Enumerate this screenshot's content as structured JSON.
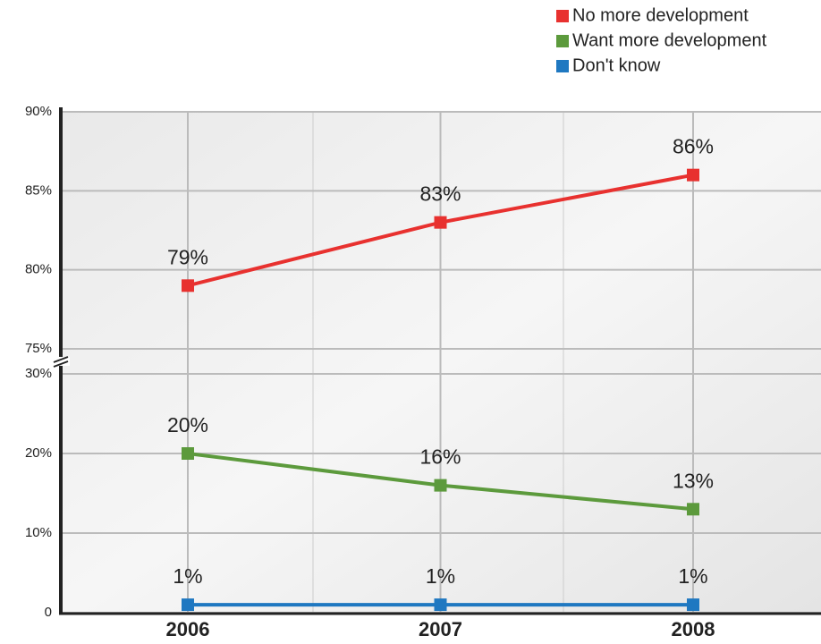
{
  "chart_data": [
    {
      "type": "line",
      "ylim": [
        75,
        90
      ],
      "yticks": [
        {
          "value": 75,
          "label": "75%"
        },
        {
          "value": 80,
          "label": "80%"
        },
        {
          "value": 85,
          "label": "85%"
        },
        {
          "value": 90,
          "label": "90%"
        }
      ],
      "grid": true,
      "series": [
        {
          "name": "No more development",
          "color": "#e8312f",
          "values": [
            79,
            83,
            86
          ],
          "value_labels": [
            "79%",
            "83%",
            "86%"
          ]
        }
      ]
    },
    {
      "type": "line",
      "categories": [
        "2006",
        "2007",
        "2008"
      ],
      "ylim": [
        0,
        30
      ],
      "yticks": [
        0,
        {
          "value": 10,
          "label": "10%"
        },
        {
          "value": 20,
          "label": "20%"
        },
        {
          "value": 30,
          "label": "30%"
        }
      ],
      "grid": true,
      "legend": "top-right",
      "series": [
        {
          "name": "Want more development",
          "color": "#5c9a3c",
          "values": [
            20,
            16,
            13
          ],
          "value_labels": [
            "20%",
            "16%",
            "13%"
          ]
        },
        {
          "name": "Don't know",
          "color": "#1f78c1",
          "values": [
            1,
            1,
            1
          ],
          "value_labels": [
            "1%",
            "1%",
            "1%"
          ]
        }
      ]
    }
  ]
}
